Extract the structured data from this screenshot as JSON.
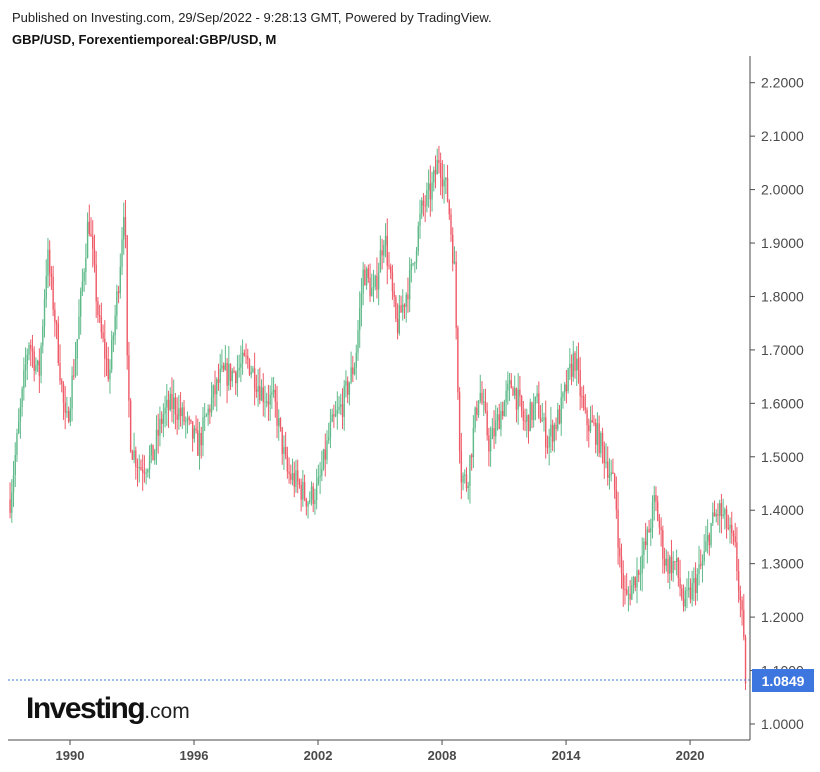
{
  "header": {
    "published": "Published on Investing.com, 29/Sep/2022 - 9:28:13 GMT, Powered by TradingView.",
    "symbol": "GBP/USD, Forexentiemporeal:GBP/USD, M"
  },
  "logo": {
    "brand": "Investing",
    "domain": ".com"
  },
  "colors": {
    "up": "#5fba8a",
    "down": "#ee5a67",
    "last_price_bg": "#3e76e0",
    "axis": "#4a4a4a"
  },
  "chart_data": {
    "type": "candlestick",
    "interval": "M",
    "xlim": [
      1987.0,
      2022.9
    ],
    "ylim": [
      0.97,
      2.25
    ],
    "x_ticks": [
      "1990",
      "1996",
      "2002",
      "2008",
      "2014",
      "2020"
    ],
    "y_ticks": [
      "2.2000",
      "2.1000",
      "2.0000",
      "1.9000",
      "1.8000",
      "1.7000",
      "1.6000",
      "1.5000",
      "1.4000",
      "1.3000",
      "1.2000",
      "1.1000",
      "1.0000"
    ],
    "last_price": "1.0849",
    "key_points": [
      [
        1987.1,
        1.42
      ],
      [
        1987.5,
        1.55
      ],
      [
        1988.0,
        1.72
      ],
      [
        1988.5,
        1.65
      ],
      [
        1988.9,
        1.88
      ],
      [
        1989.3,
        1.75
      ],
      [
        1989.8,
        1.55
      ],
      [
        1990.3,
        1.7
      ],
      [
        1990.9,
        1.95
      ],
      [
        1991.4,
        1.75
      ],
      [
        1991.9,
        1.65
      ],
      [
        1992.4,
        1.85
      ],
      [
        1992.65,
        2.0
      ],
      [
        1992.75,
        1.68
      ],
      [
        1992.95,
        1.52
      ],
      [
        1993.4,
        1.48
      ],
      [
        1994.0,
        1.5
      ],
      [
        1994.5,
        1.58
      ],
      [
        1995.0,
        1.6
      ],
      [
        1995.5,
        1.57
      ],
      [
        1996.2,
        1.52
      ],
      [
        1996.8,
        1.6
      ],
      [
        1997.3,
        1.65
      ],
      [
        1998.0,
        1.66
      ],
      [
        1998.6,
        1.68
      ],
      [
        1999.3,
        1.62
      ],
      [
        1999.9,
        1.6
      ],
      [
        2000.5,
        1.47
      ],
      [
        2001.0,
        1.45
      ],
      [
        2001.5,
        1.42
      ],
      [
        2002.0,
        1.44
      ],
      [
        2002.6,
        1.55
      ],
      [
        2003.2,
        1.6
      ],
      [
        2003.8,
        1.68
      ],
      [
        2004.2,
        1.85
      ],
      [
        2004.7,
        1.8
      ],
      [
        2005.2,
        1.92
      ],
      [
        2005.8,
        1.74
      ],
      [
        2006.5,
        1.84
      ],
      [
        2007.0,
        1.96
      ],
      [
        2007.5,
        2.0
      ],
      [
        2007.85,
        2.06
      ],
      [
        2008.3,
        1.98
      ],
      [
        2008.6,
        1.85
      ],
      [
        2008.9,
        1.47
      ],
      [
        2009.2,
        1.45
      ],
      [
        2009.8,
        1.63
      ],
      [
        2010.3,
        1.52
      ],
      [
        2010.8,
        1.58
      ],
      [
        2011.4,
        1.64
      ],
      [
        2012.0,
        1.56
      ],
      [
        2012.6,
        1.6
      ],
      [
        2013.1,
        1.53
      ],
      [
        2013.7,
        1.58
      ],
      [
        2014.4,
        1.69
      ],
      [
        2014.9,
        1.57
      ],
      [
        2015.4,
        1.55
      ],
      [
        2015.9,
        1.5
      ],
      [
        2016.4,
        1.43
      ],
      [
        2016.6,
        1.3
      ],
      [
        2016.9,
        1.23
      ],
      [
        2017.4,
        1.28
      ],
      [
        2017.9,
        1.34
      ],
      [
        2018.3,
        1.42
      ],
      [
        2018.8,
        1.3
      ],
      [
        2019.3,
        1.3
      ],
      [
        2019.7,
        1.22
      ],
      [
        2020.2,
        1.26
      ],
      [
        2020.6,
        1.3
      ],
      [
        2021.0,
        1.37
      ],
      [
        2021.4,
        1.4
      ],
      [
        2021.8,
        1.37
      ],
      [
        2022.2,
        1.32
      ],
      [
        2022.5,
        1.2
      ],
      [
        2022.7,
        1.08
      ]
    ]
  }
}
